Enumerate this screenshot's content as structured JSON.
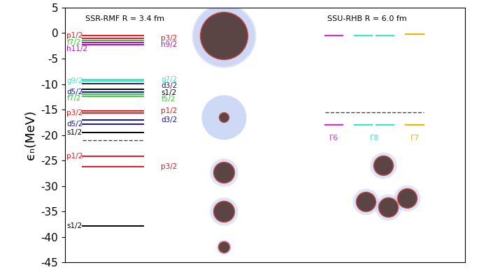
{
  "chart_data": {
    "type": "level_diagram",
    "y_label": "ϵₙ(MeV)",
    "ylim": [
      -45,
      5
    ],
    "yticks": [
      -45,
      -40,
      -35,
      -30,
      -25,
      -20,
      -15,
      -10,
      -5,
      0,
      5
    ],
    "tick_labels": "y",
    "panels": [
      {
        "title": "SSR-RMF R = 3.4 fm",
        "fermi_energy": -21.0,
        "levels": [
          {
            "label": "p1/2",
            "energy": -0.5,
            "color": "#e8141c",
            "side": "left"
          },
          {
            "label": "p3/2",
            "energy": -1.0,
            "color": "#e8141c",
            "side": "right"
          },
          {
            "label": "f7/2",
            "energy": -1.4,
            "color": "#33cc33",
            "side": "left"
          },
          {
            "label": "h9/2",
            "energy": -1.9,
            "color": "#cc00cc",
            "side": "right"
          },
          {
            "label": "h11/2",
            "energy": -2.2,
            "color": "#cc00cc",
            "side": "left"
          },
          {
            "label": "g7/2",
            "energy": -9.1,
            "color": "#3ee6c6",
            "side": "right"
          },
          {
            "label": "g9/2",
            "energy": -9.4,
            "color": "#3ee6c6",
            "side": "left"
          },
          {
            "label": "d3/2",
            "energy": -9.9,
            "color": "#202060",
            "side": "right"
          },
          {
            "label": "s1/2",
            "energy": -11.0,
            "color": "#000000",
            "side": "right"
          },
          {
            "label": "d5/2",
            "energy": -11.5,
            "color": "#1010c0",
            "side": "left"
          },
          {
            "label": "f5/2",
            "energy": -12.0,
            "color": "#33cc33",
            "side": "right"
          },
          {
            "label": "f7/2",
            "energy": -12.4,
            "color": "#33cc33",
            "side": "left"
          },
          {
            "label": "p1/2",
            "energy": -15.3,
            "color": "#e8141c",
            "side": "right"
          },
          {
            "label": "p3/2",
            "energy": -15.7,
            "color": "#e8141c",
            "side": "left"
          },
          {
            "label": "d3/2",
            "energy": -17.0,
            "color": "#1010c0",
            "side": "right"
          },
          {
            "label": "d5/2",
            "energy": -17.9,
            "color": "#1010c0",
            "side": "left"
          },
          {
            "label": "s1/2",
            "energy": -19.5,
            "color": "#000000",
            "side": "left"
          },
          {
            "label": "p1/2",
            "energy": -24.2,
            "color": "#e8141c",
            "side": "left"
          },
          {
            "label": "p3/2",
            "energy": -26.2,
            "color": "#e8141c",
            "side": "right"
          },
          {
            "label": "s1/2",
            "energy": -37.9,
            "color": "#000000",
            "side": "left"
          }
        ]
      },
      {
        "title": "SSU-RHB R = 6.0 fm",
        "fermi_energy": -15.5,
        "levels": [
          {
            "label": "Γ6",
            "energies": [
              -0.5,
              -18.0
            ],
            "color": "#cc33cc",
            "segments": 1
          },
          {
            "label": "Γ8",
            "energies": [
              -0.5,
              -18.0
            ],
            "color": "#3ee6c6",
            "segments": 2
          },
          {
            "label": "Γ7",
            "energies": [
              -0.2,
              -18.0
            ],
            "color": "#e6b800",
            "segments": 1
          }
        ]
      }
    ]
  }
}
